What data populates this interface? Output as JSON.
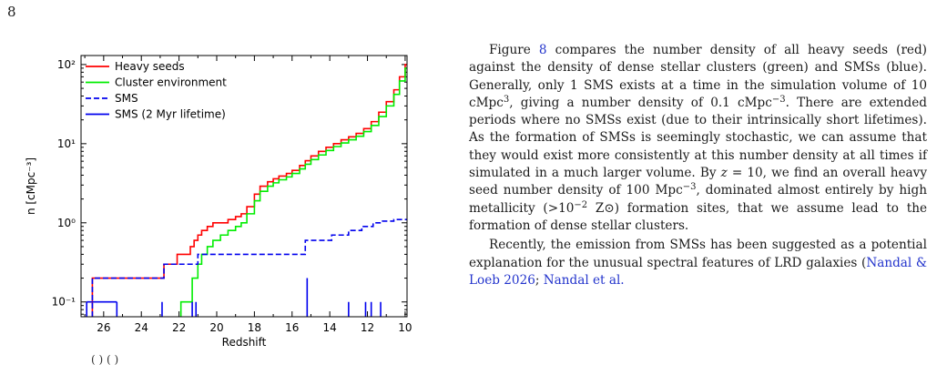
{
  "page": {
    "number": "8"
  },
  "figure": {
    "caption_fragment": "( ) ( )",
    "chart_data": {
      "type": "line",
      "xlabel": "Redshift",
      "ylabel": "n [cMpc⁻³]",
      "xlim": [
        27.2,
        9.9
      ],
      "ylim": [
        0.065,
        130
      ],
      "yscale": "log",
      "x_reversed": true,
      "grid": false,
      "legend_position": "top-left",
      "x_ticks": [
        26,
        24,
        22,
        20,
        18,
        16,
        14,
        12,
        10
      ],
      "x_tick_labels": [
        "26",
        "24",
        "22",
        "20",
        "18",
        "16",
        "14",
        "12",
        "10"
      ],
      "y_ticks": [
        0.1,
        1,
        10,
        100
      ],
      "y_tick_labels": [
        "10⁻¹",
        "10⁰",
        "10¹",
        "10²"
      ],
      "series": [
        {
          "name": "Heavy seeds",
          "color": "#ff0000",
          "style": "solid",
          "x": [
            26.6,
            25.3,
            22.8,
            22.1,
            21.4,
            21.2,
            21.0,
            20.8,
            20.5,
            20.2,
            19.8,
            19.4,
            19.0,
            18.7,
            18.4,
            18.0,
            17.7,
            17.3,
            17.0,
            16.7,
            16.3,
            16.0,
            15.6,
            15.3,
            15.0,
            14.6,
            14.2,
            13.8,
            13.4,
            13.0,
            12.6,
            12.2,
            11.8,
            11.4,
            11.0,
            10.6,
            10.3,
            10.0
          ],
          "y": [
            0.2,
            0.2,
            0.3,
            0.4,
            0.5,
            0.6,
            0.7,
            0.8,
            0.9,
            1.0,
            1.0,
            1.1,
            1.2,
            1.3,
            1.6,
            2.3,
            2.9,
            3.3,
            3.6,
            3.9,
            4.2,
            4.6,
            5.3,
            6.1,
            7.0,
            8.0,
            9.0,
            10.0,
            11.2,
            12.2,
            13.5,
            15.5,
            19.0,
            25.0,
            34.0,
            48.0,
            70.0,
            100.0
          ]
        },
        {
          "name": "Cluster environment",
          "color": "#00ee00",
          "style": "solid",
          "x": [
            21.9,
            21.3,
            21.0,
            20.8,
            20.5,
            20.2,
            19.8,
            19.4,
            19.0,
            18.7,
            18.4,
            18.0,
            17.7,
            17.3,
            17.0,
            16.7,
            16.3,
            16.0,
            15.6,
            15.3,
            15.0,
            14.6,
            14.2,
            13.8,
            13.4,
            13.0,
            12.6,
            12.2,
            11.8,
            11.4,
            11.0,
            10.6,
            10.3,
            10.0
          ],
          "y": [
            0.1,
            0.2,
            0.3,
            0.4,
            0.5,
            0.6,
            0.7,
            0.8,
            0.9,
            1.0,
            1.3,
            1.9,
            2.5,
            2.9,
            3.2,
            3.5,
            3.8,
            4.2,
            4.8,
            5.5,
            6.3,
            7.2,
            8.2,
            9.2,
            10.2,
            11.2,
            12.4,
            14.2,
            17.0,
            22.0,
            30.0,
            42.0,
            62.0,
            90.0
          ]
        },
        {
          "name": "SMS",
          "color": "#0000ee",
          "style": "dashed",
          "x": [
            26.6,
            25.3,
            22.8,
            21.0,
            15.3,
            13.9,
            13.0,
            12.3,
            11.7,
            11.2,
            10.6,
            10.0
          ],
          "y": [
            0.2,
            0.2,
            0.3,
            0.4,
            0.6,
            0.7,
            0.8,
            0.9,
            1.0,
            1.05,
            1.1,
            1.1
          ]
        },
        {
          "name": "SMS (2 Myr lifetime)",
          "color": "#0000ee",
          "style": "solid",
          "x": [
            26.9,
            25.3,
            22.9,
            21.3,
            21.1,
            15.2,
            13.0,
            12.1,
            11.8,
            11.3
          ],
          "y": [
            0.1,
            0.1,
            0.1,
            0.1,
            0.1,
            0.2,
            0.1,
            0.1,
            0.1,
            0.1
          ]
        }
      ]
    }
  },
  "body": {
    "p1": [
      "Figure ",
      "8",
      " compares the number density of all heavy seeds (red) against the density of dense stellar clusters (green) and SMSs (blue). Generally, only 1 SMS exists at a time in the simulation volume of 10 cMpc",
      "3",
      ", giving a number density of 0.1 cMpc",
      "−3",
      ". There are extended periods where no SMSs exist (due to their intrinsically short lifetimes). As the formation of SMSs is seemingly stochastic, we can assume that they would exist more consistently at this number density at all times if simulated in a much larger volume. By ",
      "z",
      " = 10, we find an overall heavy seed number density of 100 Mpc",
      "−3",
      ", dominated almost entirely by high metallicity (>10",
      "−2",
      " Z⊙) formation sites, that we assume lead to the formation of dense stellar clusters."
    ],
    "p2": [
      "Recently, the emission from SMSs has been suggested as a potential explanation for the unusual spectral features of LRD galaxies (",
      "Nandal & Loeb 2026",
      "; ",
      "Nandal et al."
    ]
  }
}
